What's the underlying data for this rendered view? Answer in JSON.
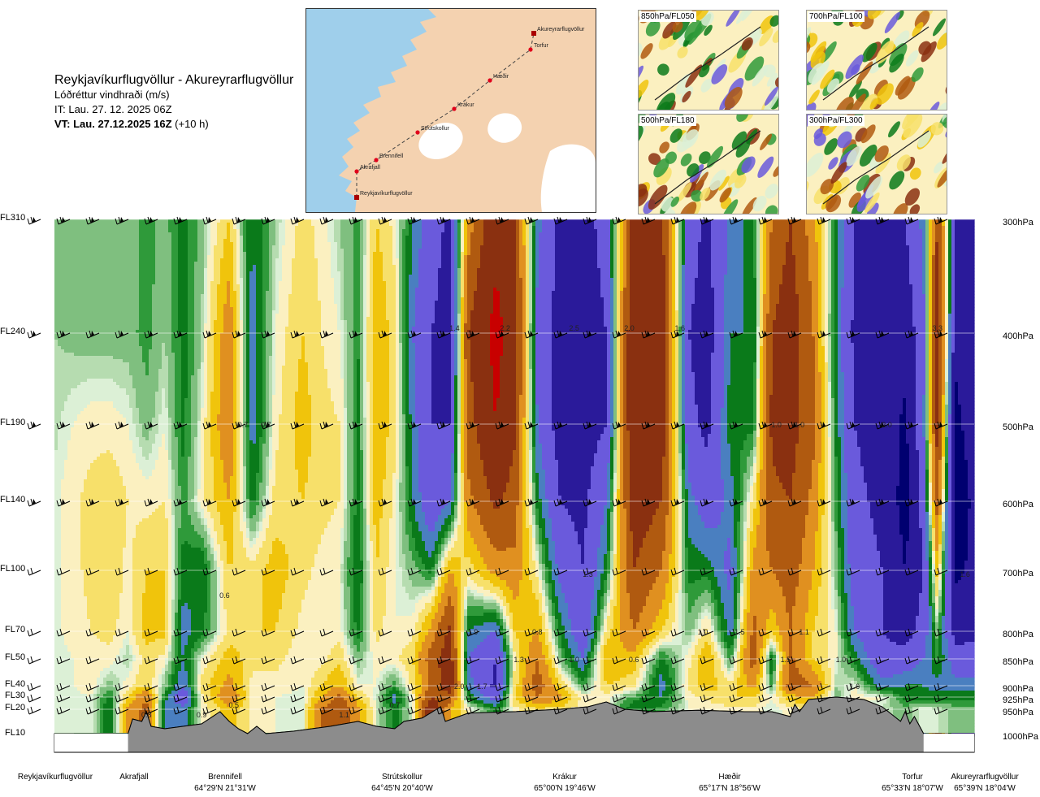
{
  "header": {
    "title": "Reykjavíkurflugvöllur - Akureyrarflugvöllur",
    "variable": "Lóðréttur vindhraði (m/s)",
    "it": "IT: Lau. 27. 12. 2025 06Z",
    "vt_bold": "VT: Lau. 27.12.2025 16Z",
    "vt_offset": " (+10 h)"
  },
  "map": {
    "waypoints": [
      "Reykjavíkurflugvöllur",
      "Akrafjall",
      "Brennifell",
      "Strútskollur",
      "Krákur",
      "Hæðir",
      "Torfur",
      "Akureyrarflugvöllur"
    ],
    "land_color": "#f4d2b0",
    "water_color": "#9fcfeb",
    "ice_color": "#ffffff",
    "route_color": "#444444",
    "marker_color": "#e0001b"
  },
  "thumbnails": [
    {
      "label": "850hPa/FL050"
    },
    {
      "label": "700hPa/FL100"
    },
    {
      "label": "500hPa/FL180"
    },
    {
      "label": "300hPa/FL300"
    }
  ],
  "chart_data": {
    "type": "heatmap",
    "title": "Reykjavíkurflugvöllur - Akureyrarflugvöllur",
    "variable": "Lóðréttur vindhraði (m/s)",
    "y_levels_fl": [
      "FL310",
      "FL240",
      "FL190",
      "FL140",
      "FL100",
      "FL70",
      "FL50",
      "FL40",
      "FL30",
      "FL20",
      "FL10"
    ],
    "y_levels_hpa": [
      "300hPa",
      "400hPa",
      "500hPa",
      "600hPa",
      "700hPa",
      "800hPa",
      "850hPa",
      "900hPa",
      "925hPa",
      "950hPa",
      "1000hPa"
    ],
    "hpa_values": [
      300,
      400,
      500,
      600,
      700,
      800,
      850,
      900,
      925,
      950,
      1000
    ],
    "x_stations": [
      {
        "name": "Reykjavíkurflugvöllur",
        "coord": "",
        "dist": 0.0
      },
      {
        "name": "Akrafjall",
        "coord": "",
        "dist": 0.08
      },
      {
        "name": "Brennifell",
        "coord": "64°29'N 21°31'W",
        "dist": 0.18
      },
      {
        "name": "Strútskollur",
        "coord": "64°45'N 20°40'W",
        "dist": 0.38
      },
      {
        "name": "Krákur",
        "coord": "65°00'N 19°46'W",
        "dist": 0.57
      },
      {
        "name": "Hæðir",
        "coord": "65°17'N 18°56'W",
        "dist": 0.77
      },
      {
        "name": "Torfur",
        "coord": "65°33'N 18°07'W",
        "dist": 0.955
      },
      {
        "name": "Akureyrarflugvöllur",
        "coord": "65°39'N 18°04'W",
        "dist": 1.0
      }
    ],
    "color_scale": [
      {
        "value": -2.0,
        "color": "#000070"
      },
      {
        "value": -1.5,
        "color": "#2a1a9a"
      },
      {
        "value": -1.0,
        "color": "#6a5adc"
      },
      {
        "value": -0.6,
        "color": "#4a7fc0"
      },
      {
        "value": -0.4,
        "color": "#0a7a1a"
      },
      {
        "value": -0.25,
        "color": "#2f9a3a"
      },
      {
        "value": -0.15,
        "color": "#7fbf7f"
      },
      {
        "value": -0.05,
        "color": "#b6dcb0"
      },
      {
        "value": 0.0,
        "color": "#dcf0d6"
      },
      {
        "value": 0.05,
        "color": "#fbf0c0"
      },
      {
        "value": 0.15,
        "color": "#f7e06a"
      },
      {
        "value": 0.3,
        "color": "#f0c40c"
      },
      {
        "value": 0.5,
        "color": "#e09020"
      },
      {
        "value": 0.8,
        "color": "#b05a10"
      },
      {
        "value": 1.2,
        "color": "#8a3010"
      },
      {
        "value": 1.8,
        "color": "#c80000"
      }
    ],
    "columns": [
      {
        "x": 0.0,
        "v": [
          -0.05,
          -0.05,
          -0.02,
          0.02,
          0.03,
          0.03,
          0.02,
          0.02,
          0.01,
          0.01
        ]
      },
      {
        "x": 0.02,
        "v": [
          -0.05,
          -0.08,
          0.05,
          0.12,
          0.1,
          0.08,
          0.05,
          0.05,
          0.02,
          0.02
        ]
      },
      {
        "x": 0.04,
        "v": [
          -0.1,
          -0.1,
          0.1,
          0.2,
          0.2,
          0.15,
          0.1,
          0.1,
          0.05,
          0.05
        ]
      },
      {
        "x": 0.06,
        "v": [
          -0.15,
          -0.1,
          0.1,
          0.25,
          0.3,
          0.2,
          0.1,
          -0.1,
          -0.3,
          -0.4
        ]
      },
      {
        "x": 0.08,
        "v": [
          -0.05,
          -0.1,
          0.05,
          0.15,
          0.1,
          0.05,
          -0.05,
          0.1,
          0.3,
          0.6
        ]
      },
      {
        "x": 0.1,
        "v": [
          -0.2,
          -0.2,
          -0.1,
          0.1,
          0.3,
          0.4,
          0.2,
          0.3,
          0.8,
          0.9
        ]
      },
      {
        "x": 0.12,
        "v": [
          -0.1,
          -0.05,
          0.05,
          0.15,
          0.3,
          0.35,
          0.1,
          -0.1,
          -0.3,
          -0.5
        ]
      },
      {
        "x": 0.14,
        "v": [
          -0.3,
          -0.3,
          -0.3,
          -0.2,
          -0.3,
          -0.5,
          -0.4,
          -0.6,
          -0.9,
          -0.5
        ]
      },
      {
        "x": 0.16,
        "v": [
          -0.1,
          -0.05,
          0.05,
          0.1,
          -0.4,
          -0.3,
          0.05,
          0.2,
          0.1,
          0.05
        ]
      },
      {
        "x": 0.19,
        "v": [
          0.3,
          0.7,
          0.8,
          0.5,
          0.3,
          0.2,
          0.4,
          0.6,
          0.8,
          0.4
        ]
      },
      {
        "x": 0.215,
        "v": [
          -0.4,
          -0.5,
          -0.5,
          -0.3,
          0.2,
          0.3,
          0.2,
          0.1,
          0.1,
          0.1
        ]
      },
      {
        "x": 0.24,
        "v": [
          -0.05,
          0.05,
          0.1,
          0.2,
          0.4,
          0.3,
          0.2,
          0.1,
          0.05,
          0.05
        ]
      },
      {
        "x": 0.27,
        "v": [
          0.2,
          0.3,
          0.4,
          0.3,
          0.2,
          0.1,
          0.05,
          0.05,
          0.02,
          0.02
        ]
      },
      {
        "x": 0.29,
        "v": [
          0.1,
          0.15,
          0.2,
          0.2,
          0.1,
          0.05,
          0.1,
          0.3,
          0.5,
          0.8
        ]
      },
      {
        "x": 0.31,
        "v": [
          -0.05,
          0.05,
          0.15,
          0.15,
          0.05,
          0.1,
          0.25,
          0.5,
          0.9,
          1.1
        ]
      },
      {
        "x": 0.33,
        "v": [
          -0.2,
          -0.25,
          -0.3,
          -0.3,
          -0.4,
          -0.3,
          -0.1,
          0.05,
          0.3,
          0.6
        ]
      },
      {
        "x": 0.35,
        "v": [
          0.3,
          0.5,
          0.5,
          0.4,
          0.3,
          0.2,
          0.1,
          0.05,
          0.02,
          0.0
        ]
      },
      {
        "x": 0.37,
        "v": [
          0.1,
          0.2,
          0.2,
          0.1,
          0.05,
          0.05,
          0.1,
          -0.2,
          -0.5,
          -0.3
        ]
      },
      {
        "x": 0.39,
        "v": [
          -0.4,
          -0.6,
          -0.5,
          -0.4,
          -0.1,
          0.1,
          0.3,
          0.2,
          0.1,
          0.05
        ]
      },
      {
        "x": 0.41,
        "v": [
          -0.8,
          -1.0,
          -1.0,
          -0.9,
          -0.3,
          0.6,
          1.0,
          0.9,
          1.2,
          1.8
        ]
      },
      {
        "x": 0.43,
        "v": [
          -1.1,
          -1.2,
          -1.0,
          -0.6,
          0.5,
          1.3,
          1.5,
          1.5,
          1.0,
          0.5
        ]
      },
      {
        "x": 0.45,
        "v": [
          0.6,
          1.2,
          1.0,
          0.7,
          0.2,
          -0.4,
          -0.6,
          -0.5,
          -0.3,
          0.1
        ]
      },
      {
        "x": 0.48,
        "v": [
          1.6,
          2.0,
          1.8,
          1.3,
          0.6,
          -0.6,
          -1.0,
          -1.1,
          -0.8,
          -0.3
        ]
      },
      {
        "x": 0.5,
        "v": [
          1.2,
          1.5,
          1.3,
          1.0,
          0.7,
          0.3,
          0.1,
          0.2,
          0.3,
          0.1
        ]
      },
      {
        "x": 0.525,
        "v": [
          -0.5,
          -0.7,
          -0.6,
          -0.3,
          0.1,
          0.5,
          0.8,
          1.0,
          0.8,
          0.3
        ]
      },
      {
        "x": 0.55,
        "v": [
          -1.1,
          -1.2,
          -1.2,
          -1.0,
          -0.7,
          -0.3,
          -0.1,
          0.3,
          0.6,
          0.2
        ]
      },
      {
        "x": 0.575,
        "v": [
          -1.2,
          -1.3,
          -1.2,
          -1.1,
          -1.0,
          -0.9,
          -0.6,
          -0.2,
          0.1,
          0.05
        ]
      },
      {
        "x": 0.6,
        "v": [
          -0.8,
          -1.0,
          -1.0,
          -0.6,
          -0.3,
          0.2,
          0.5,
          0.3,
          0.1,
          0.05
        ]
      },
      {
        "x": 0.63,
        "v": [
          1.4,
          1.8,
          1.8,
          1.5,
          1.2,
          0.8,
          0.4,
          0.2,
          -0.2,
          -0.4
        ]
      },
      {
        "x": 0.66,
        "v": [
          1.3,
          1.6,
          1.5,
          1.2,
          0.8,
          0.3,
          -0.3,
          -0.5,
          -0.4,
          -0.2
        ]
      },
      {
        "x": 0.69,
        "v": [
          -0.8,
          -1.0,
          -0.9,
          -0.5,
          -0.3,
          -0.1,
          0.1,
          0.2,
          0.1,
          0.05
        ]
      },
      {
        "x": 0.71,
        "v": [
          -1.1,
          -1.2,
          -1.1,
          -0.8,
          -0.3,
          0.2,
          0.5,
          0.4,
          0.2,
          0.05
        ]
      },
      {
        "x": 0.735,
        "v": [
          -0.5,
          -0.4,
          -0.3,
          -0.5,
          -0.7,
          -0.5,
          -0.2,
          0.2,
          0.3,
          0.1
        ]
      },
      {
        "x": 0.76,
        "v": [
          -0.3,
          -0.4,
          -0.3,
          0.2,
          0.6,
          0.9,
          1.0,
          0.6,
          0.3,
          0.1
        ]
      },
      {
        "x": 0.78,
        "v": [
          0.8,
          1.2,
          1.3,
          1.1,
          0.8,
          0.3,
          -0.4,
          -0.2,
          0.05,
          0.0
        ]
      },
      {
        "x": 0.8,
        "v": [
          1.2,
          1.5,
          1.4,
          1.2,
          1.0,
          0.8,
          0.9,
          1.0,
          0.4,
          0.1
        ]
      },
      {
        "x": 0.825,
        "v": [
          0.6,
          0.8,
          0.9,
          0.7,
          0.5,
          0.3,
          0.3,
          0.8,
          0.5,
          0.2
        ]
      },
      {
        "x": 0.85,
        "v": [
          -0.3,
          -0.4,
          -0.3,
          -0.2,
          -0.1,
          0.05,
          0.05,
          -0.05,
          -0.1,
          -0.05
        ]
      },
      {
        "x": 0.87,
        "v": [
          -1.0,
          -1.1,
          -1.0,
          -0.9,
          -0.8,
          -0.6,
          -0.3,
          0.05,
          0.1,
          0.05
        ]
      },
      {
        "x": 0.9,
        "v": [
          -1.1,
          -1.2,
          -1.2,
          -1.1,
          -1.0,
          -1.0,
          -0.9,
          -0.5,
          0.05,
          0.0
        ]
      },
      {
        "x": 0.925,
        "v": [
          -1.0,
          -1.3,
          -1.6,
          -1.7,
          -1.5,
          -1.2,
          -0.8,
          -0.4,
          -0.3,
          -0.1
        ]
      },
      {
        "x": 0.945,
        "v": [
          -0.5,
          -0.7,
          -0.6,
          -0.8,
          -1.0,
          -0.8,
          -0.6,
          -0.4,
          -0.3,
          0.05
        ]
      },
      {
        "x": 0.96,
        "v": [
          1.2,
          1.6,
          1.4,
          1.0,
          0.4,
          -0.1,
          -0.2,
          -0.5,
          -0.3,
          0.0
        ]
      },
      {
        "x": 0.98,
        "v": [
          -1.0,
          -1.4,
          -1.6,
          -1.8,
          -1.6,
          -1.2,
          -0.8,
          -0.5,
          -0.3,
          -0.1
        ]
      },
      {
        "x": 1.0,
        "v": [
          -1.0,
          -1.2,
          -1.3,
          -1.4,
          -1.4,
          -1.1,
          -0.8,
          -0.5,
          -0.3,
          -0.1
        ]
      }
    ],
    "terrain_hpa": [
      {
        "x": 0.0,
        "p": 1000
      },
      {
        "x": 0.08,
        "p": 1000
      },
      {
        "x": 0.085,
        "p": 970
      },
      {
        "x": 0.095,
        "p": 975
      },
      {
        "x": 0.1,
        "p": 955
      },
      {
        "x": 0.105,
        "p": 985
      },
      {
        "x": 0.12,
        "p": 990
      },
      {
        "x": 0.16,
        "p": 980
      },
      {
        "x": 0.18,
        "p": 955
      },
      {
        "x": 0.19,
        "p": 975
      },
      {
        "x": 0.2,
        "p": 990
      },
      {
        "x": 0.21,
        "p": 1000
      },
      {
        "x": 0.22,
        "p": 985
      },
      {
        "x": 0.23,
        "p": 1000
      },
      {
        "x": 0.26,
        "p": 995
      },
      {
        "x": 0.3,
        "p": 985
      },
      {
        "x": 0.33,
        "p": 975
      },
      {
        "x": 0.35,
        "p": 985
      },
      {
        "x": 0.37,
        "p": 990
      },
      {
        "x": 0.38,
        "p": 975
      },
      {
        "x": 0.4,
        "p": 968
      },
      {
        "x": 0.42,
        "p": 945
      },
      {
        "x": 0.425,
        "p": 975
      },
      {
        "x": 0.45,
        "p": 958
      },
      {
        "x": 0.5,
        "p": 955
      },
      {
        "x": 0.55,
        "p": 950
      },
      {
        "x": 0.58,
        "p": 945
      },
      {
        "x": 0.6,
        "p": 935
      },
      {
        "x": 0.62,
        "p": 950
      },
      {
        "x": 0.65,
        "p": 955
      },
      {
        "x": 0.7,
        "p": 952
      },
      {
        "x": 0.75,
        "p": 955
      },
      {
        "x": 0.78,
        "p": 955
      },
      {
        "x": 0.8,
        "p": 965
      },
      {
        "x": 0.805,
        "p": 940
      },
      {
        "x": 0.81,
        "p": 955
      },
      {
        "x": 0.82,
        "p": 930
      },
      {
        "x": 0.85,
        "p": 925
      },
      {
        "x": 0.88,
        "p": 930
      },
      {
        "x": 0.9,
        "p": 945
      },
      {
        "x": 0.92,
        "p": 975
      },
      {
        "x": 0.925,
        "p": 955
      },
      {
        "x": 0.93,
        "p": 980
      },
      {
        "x": 0.935,
        "p": 965
      },
      {
        "x": 0.945,
        "p": 1000
      },
      {
        "x": 1.0,
        "p": 1000
      }
    ],
    "annotations": [
      {
        "x": 0.1,
        "p": 960,
        "text": "0.8"
      },
      {
        "x": 0.16,
        "p": 960,
        "text": "0.9"
      },
      {
        "x": 0.195,
        "p": 940,
        "text": "0.5"
      },
      {
        "x": 0.185,
        "p": 740,
        "text": "0.6"
      },
      {
        "x": 0.205,
        "p": 500,
        "text": "0.7"
      },
      {
        "x": 0.23,
        "p": 500,
        "text": "0.7"
      },
      {
        "x": 0.315,
        "p": 960,
        "text": "1.1"
      },
      {
        "x": 0.37,
        "p": 940,
        "text": "0.7"
      },
      {
        "x": 0.435,
        "p": 395,
        "text": "1.4"
      },
      {
        "x": 0.49,
        "p": 395,
        "text": "2.2"
      },
      {
        "x": 0.565,
        "p": 395,
        "text": "2.5"
      },
      {
        "x": 0.625,
        "p": 395,
        "text": "2.0"
      },
      {
        "x": 0.68,
        "p": 395,
        "text": "1.6"
      },
      {
        "x": 0.455,
        "p": 800,
        "text": "1.9"
      },
      {
        "x": 0.525,
        "p": 800,
        "text": "0.8"
      },
      {
        "x": 0.505,
        "p": 850,
        "text": "1.3"
      },
      {
        "x": 0.565,
        "p": 850,
        "text": "1.0"
      },
      {
        "x": 0.58,
        "p": 705,
        "text": "1.3"
      },
      {
        "x": 0.63,
        "p": 850,
        "text": "0.6"
      },
      {
        "x": 0.705,
        "p": 800,
        "text": "1.0"
      },
      {
        "x": 0.745,
        "p": 800,
        "text": "1.5"
      },
      {
        "x": 0.785,
        "p": 500,
        "text": "1.0"
      },
      {
        "x": 0.81,
        "p": 500,
        "text": "1.0"
      },
      {
        "x": 0.795,
        "p": 850,
        "text": "1.5"
      },
      {
        "x": 0.815,
        "p": 800,
        "text": "1.1"
      },
      {
        "x": 0.855,
        "p": 850,
        "text": "1.0"
      },
      {
        "x": 0.44,
        "p": 900,
        "text": "2.0"
      },
      {
        "x": 0.465,
        "p": 900,
        "text": "1.7"
      },
      {
        "x": 0.87,
        "p": 900,
        "text": "1.6"
      },
      {
        "x": 0.905,
        "p": 500,
        "text": "2.0"
      },
      {
        "x": 0.96,
        "p": 395,
        "text": "3.3"
      },
      {
        "x": 0.99,
        "p": 705,
        "text": "1.6"
      }
    ]
  }
}
